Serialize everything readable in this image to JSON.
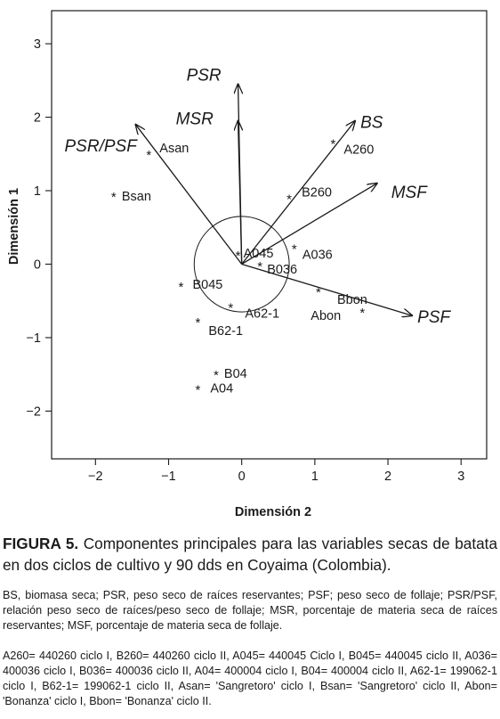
{
  "chart_data": {
    "type": "biplot",
    "xlabel": "Dimensión 2",
    "ylabel": "Dimensión 1",
    "xlim": [
      -2.6,
      3.35
    ],
    "ylim": [
      -2.65,
      3.45
    ],
    "xticks": [
      -2,
      -1,
      0,
      1,
      2,
      3
    ],
    "yticks": [
      -2,
      -1,
      0,
      1,
      2,
      3
    ],
    "grid": false,
    "circle": {
      "center": [
        0,
        0
      ],
      "radius": 0.65
    },
    "points": [
      {
        "label": "Asan",
        "x": -1.27,
        "y": 1.5
      },
      {
        "label": "Bsan",
        "x": -1.75,
        "y": 0.93
      },
      {
        "label": "A260",
        "x": 1.25,
        "y": 1.65
      },
      {
        "label": "B260",
        "x": 0.65,
        "y": 0.9
      },
      {
        "label": "A045",
        "x": -0.05,
        "y": 0.13
      },
      {
        "label": "A036",
        "x": 0.72,
        "y": 0.22
      },
      {
        "label": "B036",
        "x": 0.25,
        "y": -0.02
      },
      {
        "label": "B045",
        "x": -0.83,
        "y": -0.3
      },
      {
        "label": "Bbon",
        "x": 1.05,
        "y": -0.37
      },
      {
        "label": "Abon",
        "x": 1.65,
        "y": -0.65
      },
      {
        "label": "A62-1",
        "x": -0.15,
        "y": -0.58
      },
      {
        "label": "B62-1",
        "x": -0.6,
        "y": -0.78
      },
      {
        "label": "B04",
        "x": -0.35,
        "y": -1.5
      },
      {
        "label": "A04",
        "x": -0.6,
        "y": -1.7
      }
    ],
    "vectors": [
      {
        "label": "PSR",
        "x": -0.05,
        "y": 2.45
      },
      {
        "label": "MSR",
        "x": -0.05,
        "y": 1.95
      },
      {
        "label": "PSR/PSF",
        "x": -1.45,
        "y": 1.9
      },
      {
        "label": "BS",
        "x": 1.55,
        "y": 1.95
      },
      {
        "label": "MSF",
        "x": 1.85,
        "y": 1.1
      },
      {
        "label": "PSF",
        "x": 2.33,
        "y": -0.7
      }
    ]
  },
  "caption": {
    "figure_label": "FIGURA 5.",
    "title": "Componentes principales para las variables secas de batata en dos ciclos de cultivo y 90 dds en Coyaima (Colombia).",
    "abbreviations": "BS, biomasa seca; PSR, peso seco de raíces reservantes; PSF; peso seco de follaje; PSR/PSF, relación peso seco de raíces/peso seco de follaje; MSR, porcentaje de materia seca de raíces reservantes; MSF, porcentaje de materia seca de follaje.",
    "codes": "A260= 440260 ciclo I, B260= 440260 ciclo II, A045= 440045 Ciclo I, B045= 440045 ciclo II, A036= 400036 ciclo I, B036= 400036 ciclo II, A04= 400004 ciclo I, B04= 400004 ciclo II, A62-1= 199062-1 ciclo I, B62-1= 199062-1 ciclo II, Asan= 'Sangretoro' ciclo I, Bsan= 'Sangretoro' ciclo II, Abon= 'Bonanza' ciclo I, Bbon= 'Bonanza' ciclo II."
  }
}
